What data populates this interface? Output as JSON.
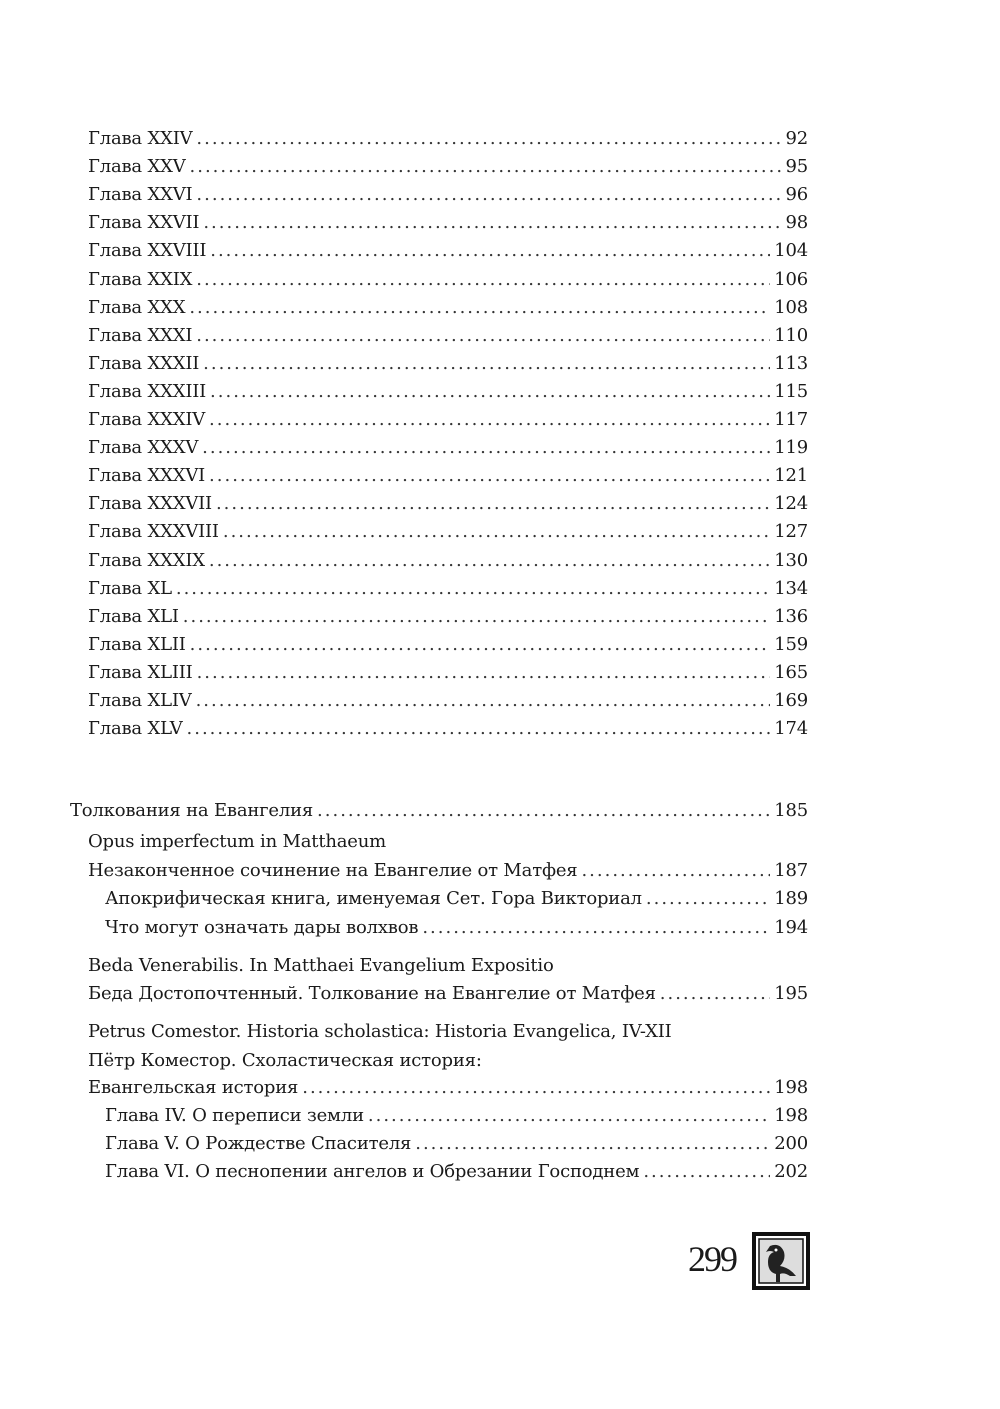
{
  "chapters": [
    {
      "title": "Глава XXIV",
      "page": "92"
    },
    {
      "title": "Глава XXV",
      "page": "95"
    },
    {
      "title": "Глава XXVI",
      "page": "96"
    },
    {
      "title": "Глава XXVII",
      "page": "98"
    },
    {
      "title": "Глава XXVIII",
      "page": "104"
    },
    {
      "title": "Глава XXIX",
      "page": "106"
    },
    {
      "title": "Глава XXX",
      "page": "108"
    },
    {
      "title": "Глава XXXI",
      "page": "110"
    },
    {
      "title": "Глава XXXII",
      "page": "113"
    },
    {
      "title": "Глава XXXIII",
      "page": "115"
    },
    {
      "title": "Глава XXXIV",
      "page": "117"
    },
    {
      "title": "Глава XXXV",
      "page": "119"
    },
    {
      "title": "Глава XXXVI",
      "page": "121"
    },
    {
      "title": "Глава XXXVII",
      "page": "124"
    },
    {
      "title": "Глава XXXVIII",
      "page": "127"
    },
    {
      "title": "Глава XXXIX",
      "page": "130"
    },
    {
      "title": "Глава XL",
      "page": "134"
    },
    {
      "title": "Глава XLI",
      "page": "136"
    },
    {
      "title": "Глава XLII",
      "page": "159"
    },
    {
      "title": "Глава XLIII",
      "page": "165"
    },
    {
      "title": "Глава XLIV",
      "page": "169"
    },
    {
      "title": "Глава XLV",
      "page": "174"
    }
  ],
  "section": [
    {
      "title": "Толкования на Евангелия",
      "page": "185",
      "level": 0
    },
    {
      "title": "Opus imperfectum in Matthaeum",
      "page": null,
      "level": 1
    },
    {
      "title": "Незаконченное сочинение на Евангелие от Матфея",
      "page": "187",
      "level": 1
    },
    {
      "title": "Апокрифическая книга, именуемая Сет. Гора Викториал",
      "page": "189",
      "level": 2
    },
    {
      "title": "Что могут означать дары волхвов",
      "page": "194",
      "level": 2
    },
    {
      "title": "Beda Venerabilis. In Matthaei Evangelium Expositio",
      "page": null,
      "level": 1
    },
    {
      "title": "Беда Достопочтенный. Толкование на Евангелие от Матфея",
      "page": "195",
      "level": 1
    },
    {
      "title": "Petrus Comestor. Historia scholastica: Historia Evangelica, IV-XII",
      "page": null,
      "level": 1
    },
    {
      "title": "Пётр Коместор. Схоластическая история:",
      "page": null,
      "level": 1
    },
    {
      "title": "Евангельская история",
      "page": "198",
      "level": 1
    },
    {
      "title": "Глава IV. О переписи земли",
      "page": "198",
      "level": 2
    },
    {
      "title": "Глава V. О Рождестве Спасителя",
      "page": "200",
      "level": 2
    },
    {
      "title": "Глава VI. О песнопении ангелов и Обрезании Господнем",
      "page": "202",
      "level": 2
    }
  ],
  "folio": "299",
  "logo_icon": "bird-emblem-icon"
}
